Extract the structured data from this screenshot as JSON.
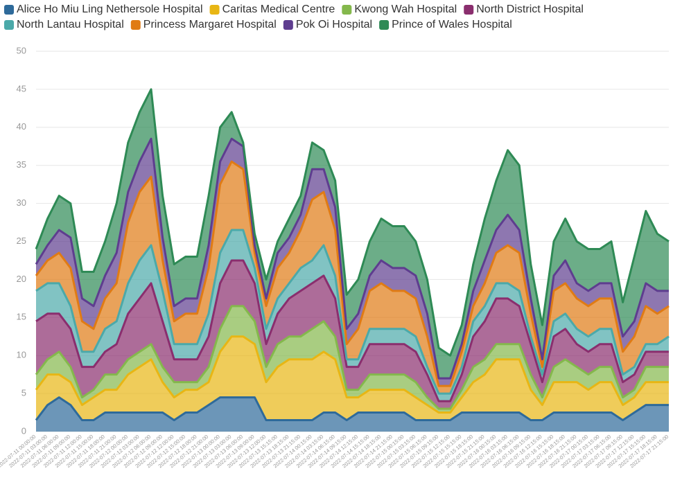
{
  "chart_data": {
    "type": "stacked_area",
    "categories": [
      "2022-07-11 00:00:00",
      "2022-07-11 03:00:00",
      "2022-07-11 06:00:00",
      "2022-07-11 09:00:00",
      "2022-07-11 12:00:00",
      "2022-07-11 15:00:00",
      "2022-07-11 18:00:00",
      "2022-07-11 21:00:00",
      "2022-07-12 00:00:00",
      "2022-07-12 03:00:00",
      "2022-07-12 06:00:00",
      "2022-07-12 09:00:00",
      "2022-07-12 12:00:00",
      "2022-07-12 15:00:00",
      "2022-07-12 18:00:00",
      "2022-07-12 21:00:00",
      "2022-07-13 00:00:00",
      "2022-07-13 03:00:00",
      "2022-07-13 06:00:00",
      "2022-07-13 09:00:00",
      "2022-07-13 12:00:00",
      "2022-07-13 15:15:00",
      "2022-07-13 18:15:00",
      "2022-07-13 21:15:00",
      "2022-07-14 00:15:00",
      "2022-07-14 03:15:00",
      "2022-07-14 06:15:00",
      "2022-07-14 09:15:00",
      "2022-07-14 12:15:00",
      "2022-07-14 15:15:00",
      "2022-07-14 18:15:00",
      "2022-07-14 21:15:00",
      "2022-07-15 00:15:00",
      "2022-07-15 03:15:00",
      "2022-07-15 06:15:00",
      "2022-07-15 09:15:00",
      "2022-07-15 12:15:00",
      "2022-07-15 15:15:00",
      "2022-07-15 18:15:00",
      "2022-07-15 21:15:00",
      "2022-07-16 00:15:00",
      "2022-07-16 03:15:00",
      "2022-07-16 06:15:00",
      "2022-07-16 09:15:00",
      "2022-07-16 12:15:00",
      "2022-07-16 15:15:00",
      "2022-07-16 18:15:00",
      "2022-07-16 21:15:00",
      "2022-07-17 00:15:00",
      "2022-07-17 03:15:00",
      "2022-07-17 06:15:00",
      "2022-07-17 09:15:00",
      "2022-07-17 12:15:00",
      "2022-07-17 15:15:00",
      "2022-07-17 18:15:00",
      "2022-07-17 21:15:00"
    ],
    "series": [
      {
        "name": "Alice Ho Miu Ling Nethersole Hospital",
        "color": "#2e6a9a",
        "values": [
          1.5,
          3.5,
          4.5,
          3.5,
          1.5,
          1.5,
          2.5,
          2.5,
          2.5,
          2.5,
          2.5,
          2.5,
          1.5,
          2.5,
          2.5,
          3.5,
          4.5,
          4.5,
          4.5,
          4.5,
          1.5,
          1.5,
          1.5,
          1.5,
          1.5,
          2.5,
          2.5,
          1.5,
          2.5,
          2.5,
          2.5,
          2.5,
          2.5,
          1.5,
          1.5,
          1.5,
          1.5,
          2.5,
          2.5,
          2.5,
          2.5,
          2.5,
          2.5,
          1.5,
          1.5,
          2.5,
          2.5,
          2.5,
          2.5,
          2.5,
          2.5,
          1.5,
          2.5,
          3.5,
          3.5,
          3.5
        ]
      },
      {
        "name": "Caritas Medical Centre",
        "color": "#e8b614",
        "values": [
          4,
          4,
          3,
          3,
          2,
          3,
          3,
          3,
          5,
          6,
          7,
          4,
          3,
          3,
          3,
          3,
          6,
          8,
          8,
          7,
          5,
          7,
          8,
          8,
          8,
          8,
          7,
          3,
          2,
          3,
          3,
          3,
          3,
          3,
          2,
          1,
          1,
          2,
          4,
          5,
          7,
          7,
          7,
          4,
          2,
          4,
          4,
          4,
          3,
          4,
          4,
          2,
          2,
          3,
          3,
          3
        ]
      },
      {
        "name": "Kwong Wah Hospital",
        "color": "#84b84c",
        "values": [
          2,
          2,
          3,
          2,
          1,
          1,
          2,
          2,
          2,
          2,
          2,
          2,
          2,
          1,
          1,
          2,
          3,
          4,
          4,
          3,
          2,
          3,
          3,
          3,
          4,
          4,
          3,
          1,
          1,
          2,
          2,
          2,
          2,
          2,
          1,
          0.5,
          0.5,
          1,
          2,
          2,
          2,
          2,
          2,
          2,
          1,
          2,
          3,
          2,
          2,
          2,
          2,
          1,
          1,
          2,
          2,
          2
        ]
      },
      {
        "name": "North District Hospital",
        "color": "#8a2e6e",
        "values": [
          7,
          6,
          5,
          5,
          4,
          3,
          3,
          4,
          6,
          7,
          8,
          6,
          3,
          3,
          3,
          4,
          6,
          6,
          6,
          5,
          3,
          4,
          5,
          6,
          6,
          6,
          5,
          3,
          3,
          4,
          4,
          4,
          4,
          4,
          3,
          1,
          1,
          2,
          4,
          5,
          6,
          6,
          5,
          4,
          2,
          4,
          4,
          3,
          3,
          3,
          3,
          2,
          2,
          2,
          2,
          2
        ]
      },
      {
        "name": "North Lantau Hospital",
        "color": "#4ba9a9",
        "values": [
          4,
          4,
          4,
          3,
          2,
          2,
          3,
          3,
          4,
          5,
          5,
          4,
          2,
          2,
          2,
          3,
          4,
          4,
          4,
          2,
          2,
          2,
          2,
          3,
          3,
          4,
          3,
          1,
          1,
          2,
          2,
          2,
          2,
          2,
          1,
          1,
          1,
          1,
          2,
          2,
          2,
          2,
          2,
          1,
          1,
          2,
          2,
          2,
          2,
          2,
          2,
          1,
          1,
          1,
          1,
          2
        ]
      },
      {
        "name": "Princess Margaret Hospital",
        "color": "#e07b14",
        "values": [
          2,
          3,
          4,
          5,
          4,
          3,
          4,
          5,
          8,
          9,
          9,
          4,
          3,
          4,
          4,
          6,
          9,
          9,
          8,
          2,
          3,
          4,
          4,
          5,
          8,
          7,
          6,
          2,
          4,
          5,
          6,
          5,
          5,
          5,
          4,
          1,
          1,
          2,
          2,
          3,
          4,
          5,
          5,
          3,
          1,
          4,
          4,
          4,
          4,
          4,
          4,
          3,
          4,
          5,
          4,
          4
        ]
      },
      {
        "name": "Pok Oi Hospital",
        "color": "#5e3d8f",
        "values": [
          1.5,
          2,
          3,
          4,
          3,
          3,
          3,
          4,
          4,
          4,
          5,
          3,
          2,
          2,
          2,
          3,
          3,
          3,
          3,
          1,
          1,
          2,
          2,
          2,
          4,
          3,
          3,
          2,
          2,
          2,
          3,
          3,
          3,
          3,
          3,
          1,
          1,
          1,
          2,
          3,
          3,
          4,
          3,
          2,
          1,
          2,
          3,
          2,
          2,
          2,
          2,
          2,
          2,
          3,
          3,
          2
        ]
      },
      {
        "name": "Prince of Wales Hospital",
        "color": "#2e8a55",
        "values": [
          2,
          3.5,
          4.5,
          4.5,
          3.5,
          4.5,
          4.5,
          6.5,
          6.5,
          6.5,
          6.5,
          5.5,
          5.5,
          5.5,
          5.5,
          6.5,
          4.5,
          3.5,
          0.5,
          1.5,
          2.5,
          1.5,
          2.5,
          2.5,
          3.5,
          2.5,
          3.5,
          4.5,
          4.5,
          4.5,
          5.5,
          5.5,
          5.5,
          4.5,
          4.5,
          4,
          3,
          2.5,
          3.5,
          5.5,
          6.5,
          8.5,
          8.5,
          4.5,
          4.5,
          4.5,
          5.5,
          5.5,
          5.5,
          4.5,
          5.5,
          4.5,
          8.5,
          9.5,
          7.5,
          6.5
        ]
      }
    ],
    "ylim": [
      0,
      50
    ],
    "yticks": [
      0,
      5,
      10,
      15,
      20,
      25,
      30,
      35,
      40,
      45,
      50
    ],
    "grid": true,
    "legend": "top"
  }
}
